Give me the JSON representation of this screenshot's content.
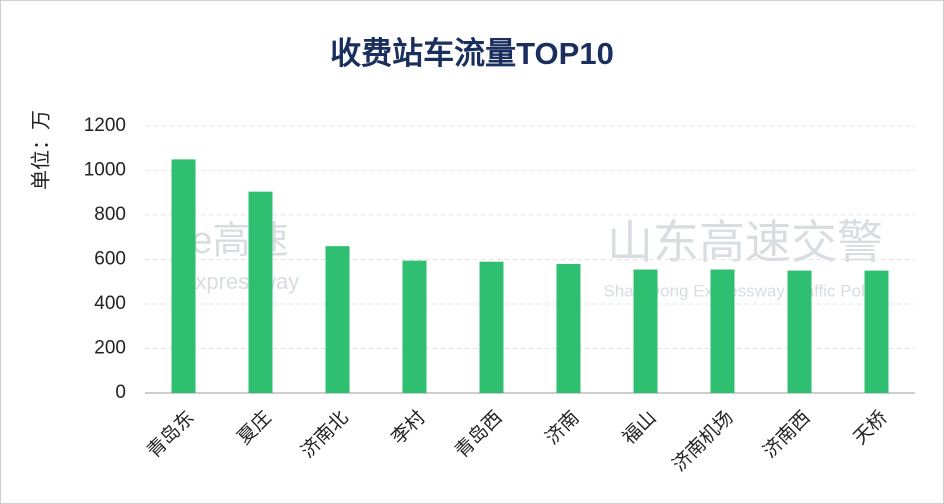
{
  "chart_data": {
    "type": "bar",
    "title": "收费站车流量TOP10",
    "y_label": "单位：万",
    "categories": [
      "青岛东",
      "夏庄",
      "济南北",
      "李村",
      "青岛西",
      "济南",
      "福山",
      "济南机场",
      "济南西",
      "天桥"
    ],
    "values": [
      1050,
      905,
      660,
      595,
      590,
      580,
      555,
      555,
      550,
      550
    ],
    "color": "#2fbf71",
    "ylim": [
      0,
      1200
    ],
    "yticks": [
      0,
      200,
      400,
      600,
      800,
      1000,
      1200
    ],
    "grid": true,
    "annotations": [
      "e高速",
      "Expressway",
      "山东高速交警",
      "Shan Dong Expressway Traffic Police"
    ]
  }
}
